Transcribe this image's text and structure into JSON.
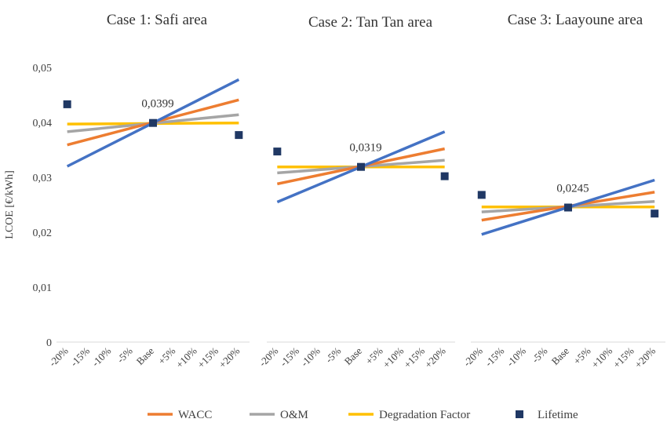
{
  "chart_data": {
    "type": "line",
    "ylabel": "LCOE [€/kWh]",
    "ylim": [
      0,
      0.05
    ],
    "yticks": [
      {
        "value": 0,
        "label": "0"
      },
      {
        "value": 0.01,
        "label": "0,01"
      },
      {
        "value": 0.02,
        "label": "0,02"
      },
      {
        "value": 0.03,
        "label": "0,03"
      },
      {
        "value": 0.04,
        "label": "0,04"
      },
      {
        "value": 0.05,
        "label": "0,05"
      }
    ],
    "categories": [
      "-20%",
      "-15%",
      "-10%",
      "-5%",
      "Base",
      "+5%",
      "+10%",
      "+15%",
      "+20%"
    ],
    "legend": {
      "position": "bottom",
      "entries": [
        {
          "name": "WACC",
          "color": "#ED7D31",
          "marker": "line"
        },
        {
          "name": "O&M",
          "color": "#A5A5A5",
          "marker": "line"
        },
        {
          "name": "Degradation Factor",
          "color": "#FFC000",
          "marker": "line"
        },
        {
          "name": "Lifetime",
          "color": "#203864",
          "marker": "square"
        }
      ]
    },
    "unnamed_series_color": "#4472C4",
    "panels": [
      {
        "title": "Case 1: Safi area",
        "base_label": "0,0399",
        "series": [
          {
            "key": "unlabeled",
            "from": 0.032,
            "to": 0.0478
          },
          {
            "key": "WACC",
            "from": 0.0359,
            "to": 0.0441
          },
          {
            "key": "O&M",
            "from": 0.0383,
            "to": 0.0414
          },
          {
            "key": "Degradation Factor",
            "from": 0.0397,
            "to": 0.0399
          },
          {
            "key": "Lifetime",
            "points": [
              {
                "x": "-20%",
                "y": 0.0433
              },
              {
                "x": "Base",
                "y": 0.0399
              },
              {
                "x": "+20%",
                "y": 0.0377
              }
            ]
          }
        ]
      },
      {
        "title": "Case 2: Tan Tan area",
        "base_label": "0,0319",
        "series": [
          {
            "key": "unlabeled",
            "from": 0.0255,
            "to": 0.0383
          },
          {
            "key": "WACC",
            "from": 0.0288,
            "to": 0.0352
          },
          {
            "key": "O&M",
            "from": 0.0308,
            "to": 0.0331
          },
          {
            "key": "Degradation Factor",
            "from": 0.0319,
            "to": 0.0319
          },
          {
            "key": "Lifetime",
            "points": [
              {
                "x": "-20%",
                "y": 0.0347
              },
              {
                "x": "Base",
                "y": 0.0319
              },
              {
                "x": "+20%",
                "y": 0.0302
              }
            ]
          }
        ]
      },
      {
        "title": "Case 3: Laayoune area",
        "base_label": "0,0245",
        "series": [
          {
            "key": "unlabeled",
            "from": 0.0196,
            "to": 0.0295
          },
          {
            "key": "WACC",
            "from": 0.0222,
            "to": 0.0273
          },
          {
            "key": "O&M",
            "from": 0.0237,
            "to": 0.0256
          },
          {
            "key": "Degradation Factor",
            "from": 0.0246,
            "to": 0.0246
          },
          {
            "key": "Lifetime",
            "points": [
              {
                "x": "-20%",
                "y": 0.0268
              },
              {
                "x": "Base",
                "y": 0.0245
              },
              {
                "x": "+20%",
                "y": 0.0234
              }
            ]
          }
        ]
      }
    ]
  }
}
